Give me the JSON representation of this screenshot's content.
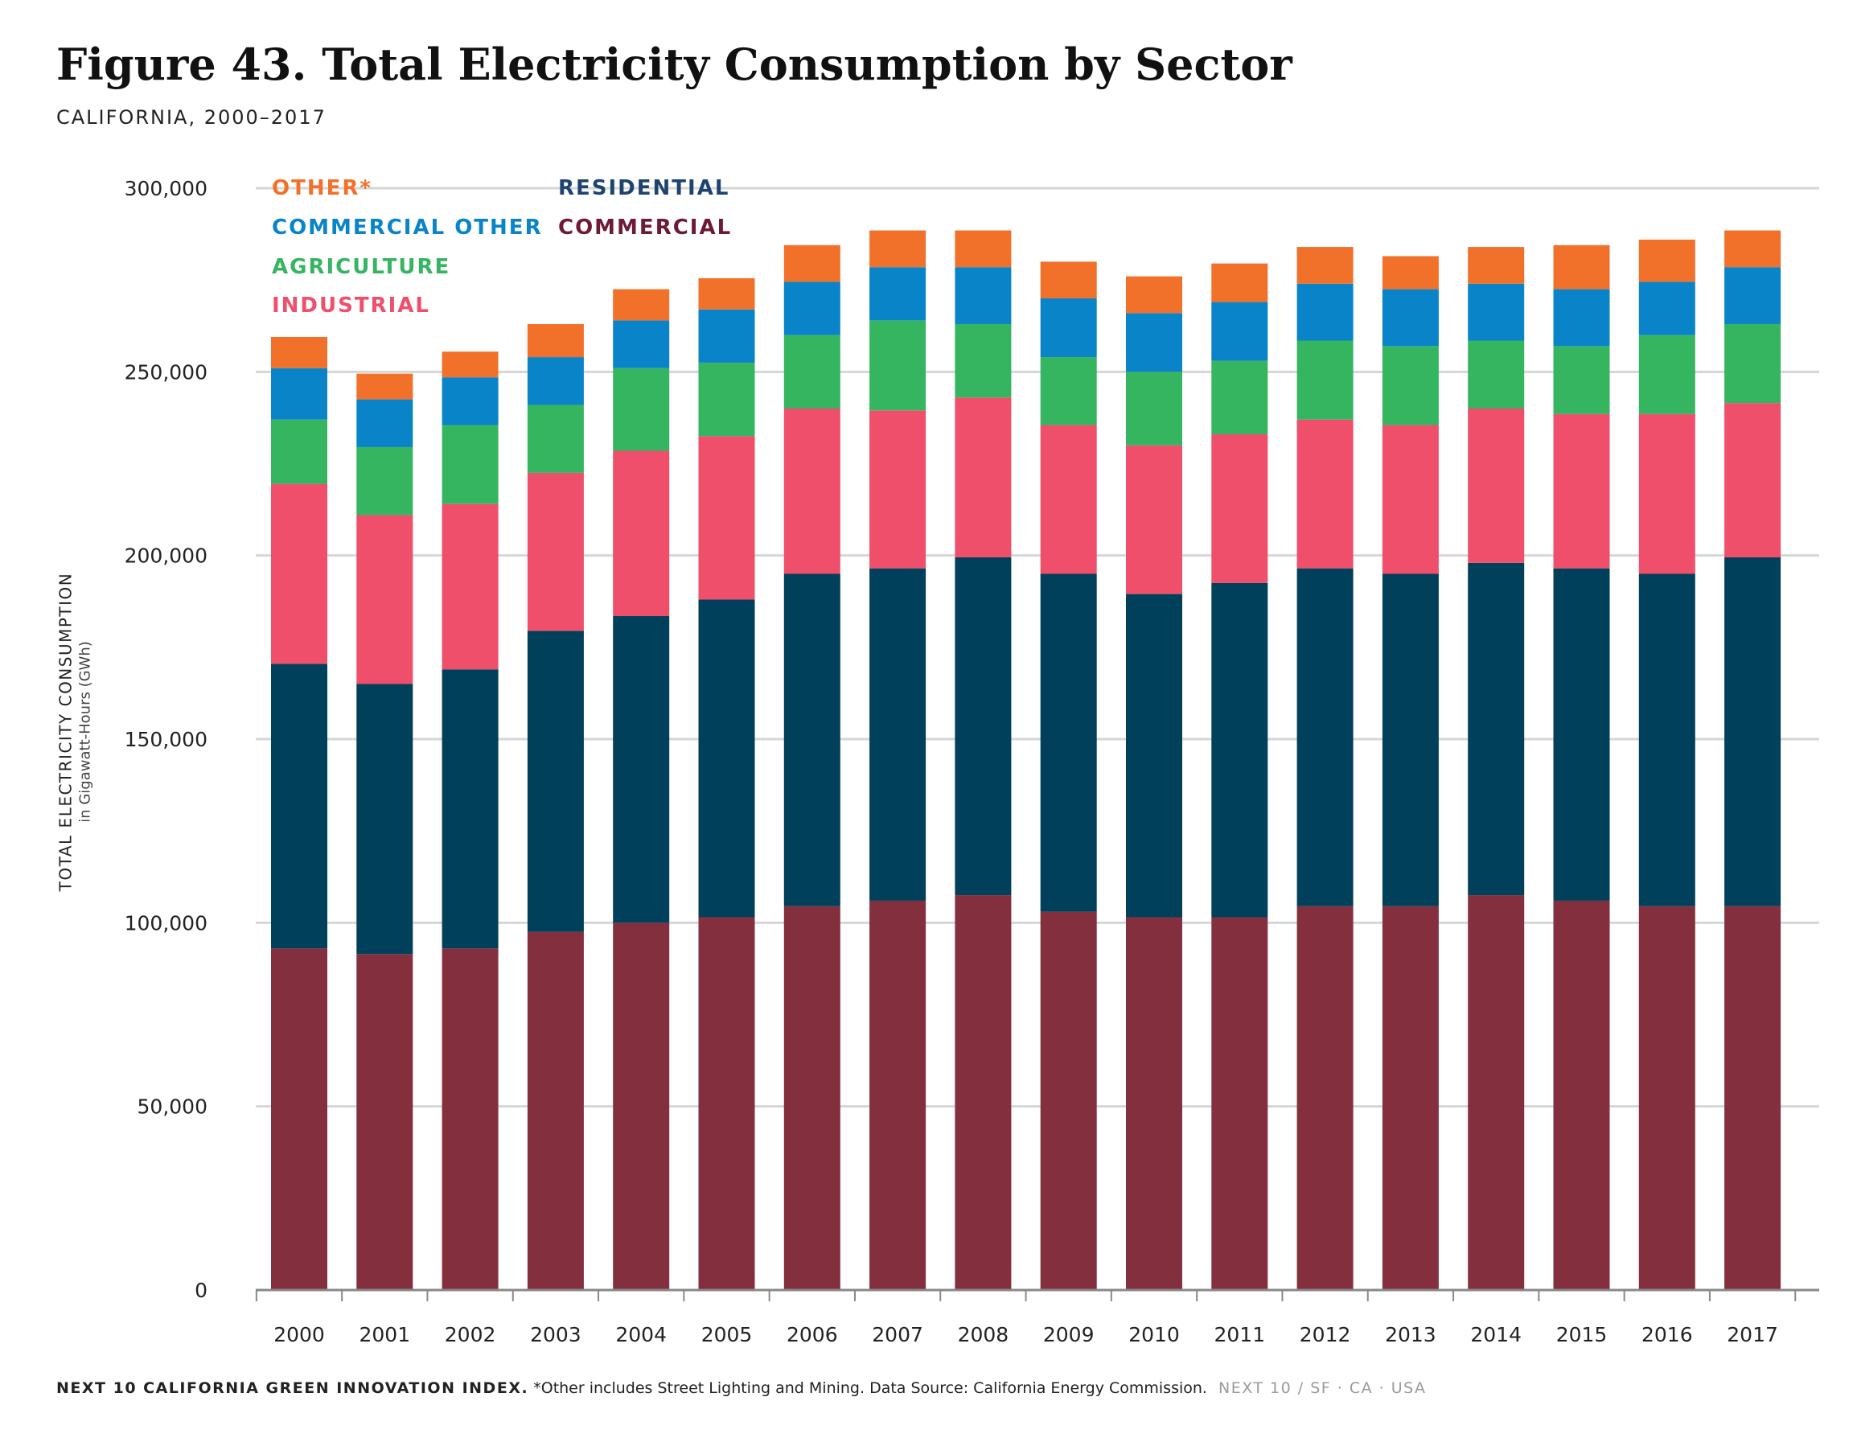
{
  "header": {
    "title": "Figure 43. Total Electricity Consumption by Sector",
    "subtitle": "CALIFORNIA, 2000–2017"
  },
  "axis": {
    "ylabel_main": "TOTAL ELECTRICITY CONSUMPTION",
    "ylabel_sub": "in Gigawatt-Hours (GWh)"
  },
  "footer": {
    "org": "NEXT 10 CALIFORNIA GREEN INNOVATION INDEX.",
    "note": "*Other includes Street Lighting and Mining. Data Source: California Energy Commission.",
    "tag": "NEXT 10 / SF · CA · USA"
  },
  "chart_data": {
    "type": "bar",
    "stacked": true,
    "title": "Figure 43. Total Electricity Consumption by Sector",
    "subtitle": "CALIFORNIA, 2000–2017",
    "xlabel": "",
    "ylabel": "TOTAL ELECTRICITY CONSUMPTION in Gigawatt-Hours (GWh)",
    "ylim": [
      0,
      300000
    ],
    "yticks": [
      0,
      50000,
      100000,
      150000,
      200000,
      250000,
      300000
    ],
    "ytick_labels": [
      "0",
      "50,000",
      "100,000",
      "150,000",
      "200,000",
      "250,000",
      "300,000"
    ],
    "grid": true,
    "legend_position": "top-left",
    "categories": [
      "2000",
      "2001",
      "2002",
      "2003",
      "2004",
      "2005",
      "2006",
      "2007",
      "2008",
      "2009",
      "2010",
      "2011",
      "2012",
      "2013",
      "2014",
      "2015",
      "2016",
      "2017"
    ],
    "series": [
      {
        "name": "COMMERCIAL",
        "color": "#832f3e",
        "values": [
          93000,
          91500,
          93000,
          97500,
          100000,
          101500,
          104500,
          106000,
          107500,
          103000,
          101500,
          101500,
          104500,
          104500,
          107500,
          106000,
          104500,
          104500
        ]
      },
      {
        "name": "RESIDENTIAL",
        "color": "#00405a",
        "values": [
          77500,
          73500,
          76000,
          82000,
          83500,
          86500,
          90500,
          90500,
          92000,
          92000,
          88000,
          91000,
          92000,
          90500,
          90500,
          90500,
          90500,
          95000
        ]
      },
      {
        "name": "INDUSTRIAL",
        "color": "#ef4f6a",
        "values": [
          49000,
          46000,
          45000,
          43000,
          45000,
          44500,
          45000,
          43000,
          43500,
          40500,
          40500,
          40500,
          40500,
          40500,
          42000,
          42000,
          43500,
          42000
        ]
      },
      {
        "name": "AGRICULTURE",
        "color": "#36b560",
        "values": [
          17500,
          18500,
          21500,
          18500,
          22500,
          20000,
          20000,
          24500,
          20000,
          18500,
          20000,
          20000,
          21500,
          21500,
          18500,
          18500,
          21500,
          21500
        ]
      },
      {
        "name": "COMMERCIAL OTHER",
        "color": "#0a84c9",
        "values": [
          14000,
          13000,
          13000,
          13000,
          13000,
          14500,
          14500,
          14500,
          15500,
          16000,
          16000,
          16000,
          15500,
          15500,
          15500,
          15500,
          14500,
          15500
        ]
      },
      {
        "name": "OTHER*",
        "color": "#f2712a",
        "values": [
          8500,
          7000,
          7000,
          9000,
          8500,
          8500,
          10000,
          10000,
          10000,
          10000,
          10000,
          10500,
          10000,
          9000,
          10000,
          12000,
          11500,
          10000
        ]
      }
    ]
  }
}
